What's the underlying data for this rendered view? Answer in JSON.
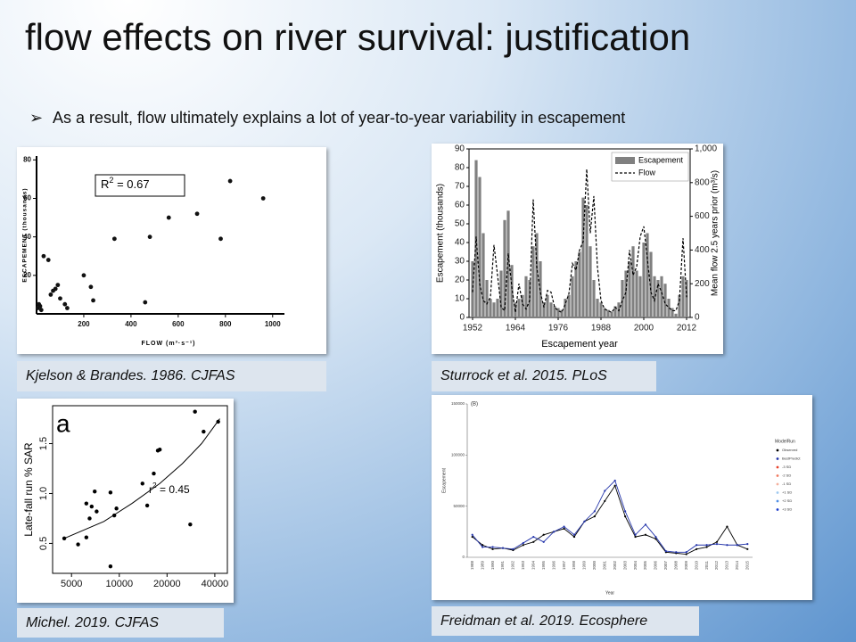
{
  "title": "flow effects on river survival: justification",
  "bullet": "As a result, flow ultimately explains a lot of year-to-year variability in escapement",
  "panels": [
    {
      "caption": "Kjelson & Brandes. 1986. CJFAS",
      "chart_data": {
        "type": "scatter",
        "frame": false,
        "color": "#111111",
        "x_label": "FLOW (m³·s⁻¹)",
        "y_label": "ESCAPEMENT (thousands)",
        "annotation": {
          "base": "R",
          "sup": "2",
          "rest": " = 0.67"
        },
        "xlim": [
          0,
          1050
        ],
        "xticks": [
          200,
          400,
          600,
          800,
          1000
        ],
        "ylim": [
          0,
          82
        ],
        "yticks": [
          20,
          40,
          60,
          80
        ],
        "x": [
          5,
          10,
          15,
          20,
          30,
          50,
          60,
          70,
          80,
          90,
          100,
          120,
          130,
          200,
          230,
          240,
          330,
          460,
          480,
          560,
          680,
          780,
          960,
          820
        ],
        "values": [
          3,
          5,
          4,
          2,
          30,
          28,
          10,
          12,
          13,
          15,
          8,
          5,
          3,
          20,
          14,
          7,
          39,
          6,
          40,
          50,
          52,
          39,
          60,
          69
        ]
      }
    },
    {
      "caption": "Sturrock et al. 2015. PLoS",
      "chart_data": {
        "type": "combo",
        "legend": "upper right",
        "x_label": "Escapement year",
        "y_label": "Escapement (thousands)",
        "y2_label": "Mean flow 2.5 years prior (m³/s)",
        "xlim": [
          1951,
          2013
        ],
        "xticks": [
          1952,
          1964,
          1976,
          1988,
          2000,
          2012
        ],
        "ylim": [
          0,
          90
        ],
        "yticks": [
          0,
          10,
          20,
          30,
          40,
          50,
          60,
          70,
          80,
          90
        ],
        "y2lim": [
          0,
          1000
        ],
        "y2ticks": [
          0,
          200,
          400,
          600,
          800,
          {
            "value": 1000,
            "label": "1,000"
          }
        ],
        "x": [
          1952,
          1953,
          1954,
          1955,
          1956,
          1957,
          1958,
          1959,
          1960,
          1961,
          1962,
          1963,
          1964,
          1965,
          1966,
          1967,
          1968,
          1969,
          1970,
          1971,
          1972,
          1973,
          1974,
          1975,
          1976,
          1977,
          1978,
          1979,
          1980,
          1981,
          1982,
          1983,
          1984,
          1985,
          1986,
          1987,
          1988,
          1989,
          1990,
          1991,
          1992,
          1993,
          1994,
          1995,
          1996,
          1997,
          1998,
          1999,
          2000,
          2001,
          2002,
          2003,
          2004,
          2005,
          2006,
          2007,
          2008,
          2009,
          2010,
          2011,
          2012
        ],
        "series": [
          {
            "name": "Escapement",
            "color": "#808080",
            "values": [
              30,
              84,
              75,
              45,
              20,
              10,
              8,
              10,
              25,
              52,
              57,
              28,
              8,
              10,
              12,
              22,
              20,
              38,
              45,
              30,
              8,
              12,
              8,
              6,
              5,
              4,
              10,
              12,
              22,
              30,
              35,
              64,
              60,
              38,
              20,
              10,
              8,
              5,
              4,
              3,
              6,
              8,
              20,
              25,
              30,
              38,
              25,
              22,
              40,
              45,
              35,
              22,
              20,
              22,
              18,
              10,
              5,
              2,
              12,
              22,
              20
            ]
          },
          {
            "name": "Flow",
            "color": "#000000",
            "axis": "y2",
            "values": [
              150,
              480,
              200,
              100,
              80,
              120,
              430,
              250,
              60,
              40,
              380,
              180,
              30,
              200,
              80,
              50,
              100,
              700,
              300,
              150,
              60,
              160,
              150,
              60,
              40,
              30,
              80,
              140,
              320,
              280,
              400,
              450,
              880,
              500,
              720,
              300,
              100,
              50,
              40,
              30,
              60,
              40,
              100,
              150,
              400,
              250,
              300,
              480,
              540,
              350,
              150,
              100,
              200,
              150,
              80,
              60,
              40,
              40,
              100,
              470,
              120
            ]
          }
        ]
      }
    },
    {
      "caption": "Michel. 2019. CJFAS",
      "chart_data": {
        "type": "scatter",
        "frame": true,
        "xscale": "log",
        "color": "#000000",
        "y_label": "Late-fall run % SAR",
        "panel_label": "a",
        "annotation": {
          "base": "r",
          "sup": "2",
          "rest": " = 0.45"
        },
        "xlim": [
          3800,
          48000
        ],
        "xticks": [
          5000,
          10000,
          20000,
          40000
        ],
        "ylim": [
          0.2,
          1.88
        ],
        "yticks": [
          0.5,
          {
            "value": 1,
            "label": "1.0"
          },
          1.5
        ],
        "x": [
          4500,
          5500,
          6200,
          6200,
          6500,
          6700,
          7000,
          7200,
          8800,
          8800,
          9300,
          9600,
          14000,
          15000,
          16500,
          17500,
          18000,
          28000,
          30000,
          34000,
          42000
        ],
        "values": [
          0.55,
          0.49,
          0.56,
          0.9,
          0.75,
          0.87,
          1.02,
          0.82,
          0.27,
          1.01,
          0.78,
          0.85,
          1.1,
          0.88,
          1.2,
          1.43,
          1.44,
          0.69,
          1.82,
          1.62,
          1.72
        ],
        "trend": {
          "x": [
            4500,
            8000,
            12000,
            18000,
            25000,
            33000,
            43000
          ],
          "y": [
            0.55,
            0.72,
            0.9,
            1.1,
            1.3,
            1.5,
            1.75
          ]
        }
      }
    },
    {
      "caption": "Freidman et al. 2019. Ecosphere",
      "chart_data": {
        "type": "line",
        "panel_label": "(B)",
        "x_label": "Year",
        "y_label": "Escapement",
        "legend_title": "ModelRun",
        "legend": [
          {
            "name": "Observed",
            "color": "#000000"
          },
          {
            "name": "BestPredict",
            "color": "#2233aa"
          },
          {
            "name": "-3 SD",
            "color": "#e8412a"
          },
          {
            "name": "-2 SD",
            "color": "#f07a5f"
          },
          {
            "name": "-1 SD",
            "color": "#f4b09d"
          },
          {
            "name": "+1 SD",
            "color": "#9ec9ef"
          },
          {
            "name": "+2 SD",
            "color": "#4f8fe6"
          },
          {
            "name": "+3 SD",
            "color": "#1a3ccc"
          }
        ],
        "categories": [
          1988,
          1989,
          1990,
          1991,
          1992,
          1993,
          1994,
          1995,
          1996,
          1997,
          1998,
          1999,
          2000,
          2001,
          2002,
          2003,
          2004,
          2005,
          2006,
          2007,
          2008,
          2009,
          2010,
          2011,
          2012,
          2013,
          2014,
          2015
        ],
        "ylim": [
          0,
          150000
        ],
        "yticks": [
          0,
          50000,
          100000,
          150000
        ],
        "series": [
          {
            "name": "Observed",
            "color": "#000000",
            "values": [
              20000,
              12000,
              8000,
              9000,
              7000,
              12000,
              15000,
              22000,
              25000,
              28000,
              20000,
              35000,
              40000,
              55000,
              70000,
              40000,
              20000,
              22000,
              18000,
              5000,
              4000,
              3000,
              8000,
              10000,
              15000,
              30000,
              12000,
              8000
            ]
          },
          {
            "name": "BestPredict",
            "color": "#2233aa",
            "values": [
              22000,
              10000,
              10000,
              9000,
              8000,
              14000,
              20000,
              15000,
              25000,
              30000,
              22000,
              35000,
              45000,
              65000,
              75000,
              45000,
              22000,
              32000,
              20000,
              6000,
              5000,
              5000,
              12000,
              12000,
              13000,
              12000,
              12000,
              13000
            ]
          }
        ]
      }
    }
  ]
}
